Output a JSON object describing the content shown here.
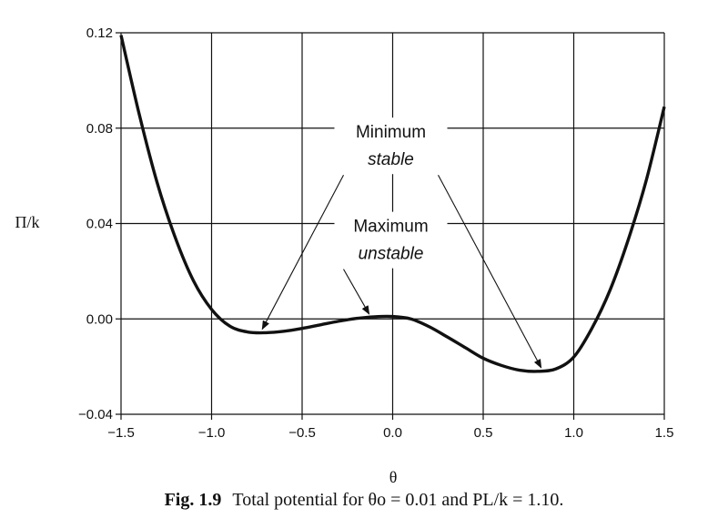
{
  "chart_data": {
    "type": "line",
    "title": "",
    "xlabel": "θ",
    "ylabel": "Π/k",
    "xlim": [
      -1.5,
      1.5
    ],
    "ylim": [
      -0.04,
      0.12
    ],
    "grid": true,
    "xticks": [
      -1.5,
      -1.0,
      -0.5,
      0.0,
      0.5,
      1.0,
      1.5
    ],
    "xtick_labels": [
      "−1.5",
      "−1.0",
      "−0.5",
      "0.0",
      "0.5",
      "1.0",
      "1.5"
    ],
    "yticks": [
      -0.04,
      0.0,
      0.04,
      0.08,
      0.12
    ],
    "ytick_labels": [
      "−0.04",
      "0.00",
      "0.04",
      "0.08",
      "0.12"
    ],
    "series": [
      {
        "x": [
          -1.5,
          -1.4,
          -1.3,
          -1.2,
          -1.1,
          -1.0,
          -0.9,
          -0.8,
          -0.7,
          -0.6,
          -0.5,
          -0.4,
          -0.3,
          -0.2,
          -0.1,
          0.0,
          0.1,
          0.2,
          0.3,
          0.4,
          0.5,
          0.6,
          0.7,
          0.8,
          0.9,
          1.0,
          1.1,
          1.2,
          1.3,
          1.4,
          1.5
        ],
        "y": [
          0.119,
          0.086,
          0.057,
          0.034,
          0.016,
          0.004,
          -0.003,
          -0.0055,
          -0.0058,
          -0.0052,
          -0.004,
          -0.0025,
          -0.001,
          0.0002,
          0.0009,
          0.001,
          0.0,
          -0.0032,
          -0.0075,
          -0.012,
          -0.0165,
          -0.0195,
          -0.0215,
          -0.022,
          -0.021,
          -0.016,
          -0.004,
          0.012,
          0.033,
          0.058,
          0.089
        ]
      }
    ],
    "annotations": [
      {
        "lines": [
          "Minimum",
          "stable"
        ],
        "italic_line": 1,
        "targets": [
          {
            "x": -0.72,
            "y": -0.0058
          },
          {
            "x": 0.82,
            "y": -0.022
          }
        ],
        "anchor": {
          "x": -0.01,
          "y": 0.0615
        }
      },
      {
        "lines": [
          "Maximum",
          "unstable"
        ],
        "italic_line": 1,
        "targets": [
          {
            "x": -0.13,
            "y": 0.0005
          }
        ],
        "anchor": {
          "x": -0.01,
          "y": 0.022
        }
      }
    ]
  },
  "caption": {
    "figure_label": "Fig. 1.9",
    "text": "Total potential for θo = 0.01 and PL/k = 1.10."
  }
}
